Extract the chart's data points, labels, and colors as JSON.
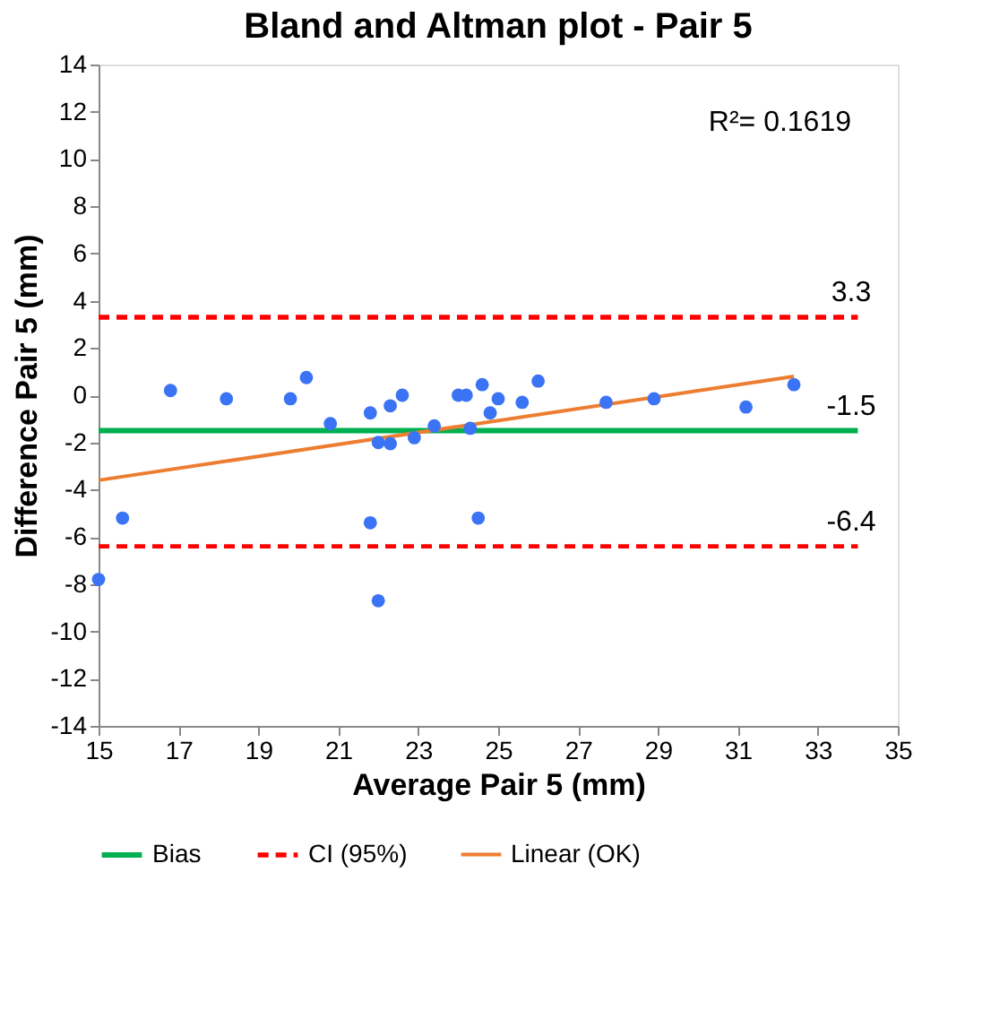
{
  "chart_data": {
    "type": "scatter",
    "title": "Bland and Altman plot - Pair 5",
    "xlabel": "Average Pair 5 (mm)",
    "ylabel": "Difference Pair 5 (mm)",
    "xlim": [
      15,
      35
    ],
    "xticks": [
      15,
      17,
      19,
      21,
      23,
      25,
      27,
      29,
      31,
      33,
      35
    ],
    "ylim": [
      -14,
      14
    ],
    "yticks": [
      -14,
      -12,
      -10,
      -8,
      -6,
      -4,
      -2,
      0,
      2,
      4,
      6,
      8,
      10,
      12,
      14
    ],
    "grid": false,
    "legend": "bottom",
    "series": [
      {
        "marker": "circle",
        "color": "#3b73f5",
        "x": [
          15.0,
          15.6,
          16.8,
          18.2,
          19.8,
          20.2,
          20.8,
          21.8,
          21.8,
          22.0,
          22.0,
          22.3,
          22.3,
          22.6,
          22.9,
          23.4,
          24.0,
          24.2,
          24.3,
          24.6,
          24.5,
          24.8,
          25.0,
          25.6,
          26.0,
          27.7,
          28.9,
          31.2,
          32.4
        ],
        "values": [
          -7.8,
          -5.2,
          0.2,
          -0.15,
          -0.15,
          0.75,
          -1.2,
          -0.75,
          -5.4,
          -2.0,
          -8.7,
          -0.45,
          -2.05,
          0.0,
          -1.8,
          -1.3,
          0.0,
          0.0,
          -1.4,
          0.45,
          -5.2,
          -0.75,
          -0.15,
          -0.3,
          0.6,
          -0.3,
          -0.15,
          -0.5,
          0.45
        ]
      },
      {
        "type": "line",
        "name": "Bias",
        "color": "#00b050",
        "line_style": "solid",
        "x": [
          15,
          34
        ],
        "values": [
          -1.5,
          -1.5
        ]
      },
      {
        "type": "line",
        "name": "CI (95%)",
        "color": "#ff0000",
        "line_style": "dashed",
        "x": [
          15,
          34
        ],
        "values": [
          3.3,
          3.3
        ]
      },
      {
        "type": "line",
        "color": "#ff0000",
        "line_style": "dashed",
        "x": [
          15,
          34
        ],
        "values": [
          -6.4,
          -6.4
        ]
      },
      {
        "type": "line",
        "name": "Linear (OK)",
        "color": "#ed7d31",
        "line_style": "solid",
        "x": [
          15,
          32.4
        ],
        "values": [
          -3.6,
          0.8
        ]
      }
    ],
    "annotations": [
      {
        "text": "3.3",
        "y": 3.3
      },
      {
        "text": "-1.5",
        "y": -1.5
      },
      {
        "text": "-6.4",
        "y": -6.4
      },
      "R²= 0.1619"
    ]
  }
}
